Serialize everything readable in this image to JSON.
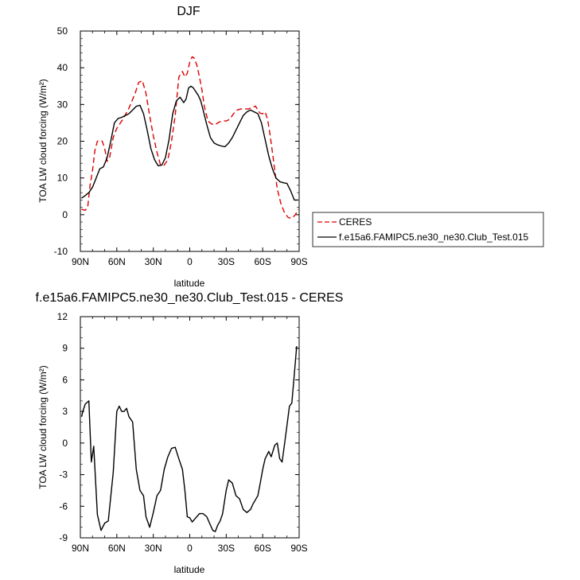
{
  "chart_data": [
    {
      "type": "line",
      "title": "DJF",
      "xlabel": "latitude",
      "ylabel": "TOA LW cloud forcing (W/m²)",
      "xlim": [
        90,
        -90
      ],
      "ylim": [
        -10,
        50
      ],
      "xticks": [
        90,
        60,
        30,
        0,
        -30,
        -60,
        -90
      ],
      "xtick_labels": [
        "90N",
        "60N",
        "30N",
        "0",
        "30S",
        "60S",
        "90S"
      ],
      "yticks": [
        -10,
        0,
        10,
        20,
        30,
        40,
        50
      ],
      "ytick_labels": [
        "-10",
        "0",
        "10",
        "20",
        "30",
        "40",
        "50"
      ],
      "legend_position": "right",
      "series": [
        {
          "name": "CERES",
          "color": "#dd0000",
          "dash": true,
          "x": [
            89,
            86,
            84,
            82,
            80,
            78,
            76,
            74,
            72,
            70,
            68,
            66,
            63,
            60,
            55,
            50,
            45,
            42,
            39,
            36,
            33,
            30,
            27,
            24,
            21,
            18,
            15,
            12,
            9,
            6,
            4,
            2,
            0,
            -2,
            -4,
            -6,
            -8,
            -10,
            -12,
            -15,
            -18,
            -21,
            -24,
            -27,
            -30,
            -33,
            -36,
            -39,
            -42,
            -45,
            -48,
            -51,
            -54,
            -57,
            -58,
            -60,
            -62,
            -64,
            -66,
            -68,
            -70,
            -72,
            -75,
            -78,
            -81,
            -84,
            -87,
            -89
          ],
          "y": [
            1.5,
            1.2,
            2.0,
            8.0,
            12.0,
            17.5,
            20.0,
            20.2,
            20.0,
            18.0,
            14.5,
            15.5,
            21.0,
            23.5,
            26.0,
            29.0,
            33.0,
            36.0,
            36.5,
            33.0,
            27.0,
            21.5,
            17.0,
            13.5,
            13.5,
            15.0,
            20.0,
            27.0,
            37.5,
            39.0,
            37.5,
            38.5,
            41.5,
            43.0,
            42.5,
            40.5,
            37.5,
            34.0,
            29.5,
            25.5,
            24.7,
            24.5,
            25.2,
            25.5,
            25.5,
            26.0,
            27.5,
            28.5,
            28.8,
            28.8,
            28.8,
            29.0,
            29.6,
            28.0,
            27.6,
            27.5,
            28.0,
            26.0,
            22.0,
            17.0,
            12.0,
            7.0,
            3.0,
            0.5,
            -0.8,
            -1.0,
            0.0,
            1.5
          ]
        },
        {
          "name": "f.e15a6.FAMIPC5.ne30_ne30.Club_Test.015",
          "color": "#000000",
          "dash": false,
          "x": [
            89,
            86,
            83,
            80,
            77,
            74,
            71,
            68,
            65,
            62,
            59,
            56,
            53,
            50,
            47,
            44,
            41,
            38,
            35,
            32,
            29,
            26,
            23,
            20,
            17,
            14,
            11,
            8,
            5,
            3,
            1,
            -1,
            -3,
            -5,
            -7,
            -9,
            -11,
            -14,
            -17,
            -20,
            -23,
            -26,
            -29,
            -32,
            -35,
            -38,
            -41,
            -44,
            -47,
            -50,
            -53,
            -56,
            -59,
            -62,
            -65,
            -68,
            -71,
            -74,
            -77,
            -80,
            -83,
            -86,
            -89
          ],
          "y": [
            4.5,
            5.2,
            6.0,
            7.5,
            10.0,
            12.5,
            13.0,
            15.5,
            20.0,
            25.0,
            26.2,
            26.5,
            27.0,
            27.5,
            28.5,
            29.5,
            29.8,
            27.5,
            23.0,
            18.0,
            15.0,
            13.3,
            13.5,
            15.5,
            20.5,
            27.5,
            31.0,
            32.0,
            30.5,
            31.5,
            34.5,
            35.0,
            34.5,
            33.5,
            32.5,
            31.0,
            28.5,
            24.5,
            21.0,
            19.5,
            19.0,
            18.7,
            18.5,
            19.5,
            21.0,
            23.0,
            25.0,
            27.0,
            28.0,
            28.5,
            28.0,
            27.5,
            25.0,
            20.5,
            16.0,
            12.5,
            10.0,
            9.0,
            8.7,
            8.5,
            6.5,
            4.0,
            4.0
          ]
        }
      ]
    },
    {
      "type": "line",
      "title": "f.e15a6.FAMIPC5.ne30_ne30.Club_Test.015 - CERES",
      "xlabel": "latitude",
      "ylabel": "TOA LW cloud forcing (W/m²)",
      "xlim": [
        90,
        -90
      ],
      "ylim": [
        -9,
        12
      ],
      "xticks": [
        90,
        60,
        30,
        0,
        -30,
        -60,
        -90
      ],
      "xtick_labels": [
        "90N",
        "60N",
        "30N",
        "0",
        "30S",
        "60S",
        "90S"
      ],
      "yticks": [
        -9,
        -6,
        -3,
        0,
        3,
        6,
        9,
        12
      ],
      "ytick_labels": [
        "-9",
        "-6",
        "-3",
        "0",
        "3",
        "6",
        "9",
        "12"
      ],
      "series": [
        {
          "name": "",
          "color": "#000000",
          "dash": false,
          "x": [
            89,
            88,
            86,
            83,
            81,
            79,
            76,
            73,
            70,
            67,
            63,
            60,
            58,
            56,
            54,
            52,
            50,
            47,
            44,
            41,
            38,
            36,
            33,
            30,
            27,
            24,
            21,
            18,
            15,
            12,
            9,
            6,
            4,
            2,
            0,
            -2,
            -5,
            -8,
            -11,
            -14,
            -17,
            -19,
            -21,
            -23,
            -25,
            -27,
            -30,
            -32,
            -35,
            -38,
            -41,
            -44,
            -47,
            -50,
            -52,
            -54,
            -56,
            -58,
            -60,
            -62,
            -65,
            -67,
            -70,
            -72,
            -74,
            -76,
            -79,
            -82,
            -84,
            -86,
            -88
          ],
          "y": [
            2.5,
            3.0,
            3.7,
            4.0,
            -1.8,
            -0.3,
            -6.8,
            -8.3,
            -7.6,
            -7.4,
            -2.8,
            3.0,
            3.5,
            3.0,
            3.0,
            3.3,
            2.5,
            2.0,
            -2.5,
            -4.5,
            -5.0,
            -7.0,
            -8.0,
            -6.6,
            -5.0,
            -4.5,
            -2.5,
            -1.3,
            -0.5,
            -0.4,
            -1.5,
            -2.5,
            -4.5,
            -7.0,
            -7.1,
            -7.5,
            -7.1,
            -6.7,
            -6.7,
            -7.0,
            -7.8,
            -8.3,
            -8.4,
            -7.8,
            -7.4,
            -6.7,
            -4.5,
            -3.5,
            -3.8,
            -5.0,
            -5.3,
            -6.3,
            -6.6,
            -6.3,
            -5.8,
            -5.4,
            -5.0,
            -3.8,
            -2.5,
            -1.5,
            -0.8,
            -1.3,
            -0.2,
            0.0,
            -1.5,
            -1.8,
            0.8,
            3.5,
            3.8,
            6.5,
            9.2
          ]
        }
      ]
    }
  ]
}
